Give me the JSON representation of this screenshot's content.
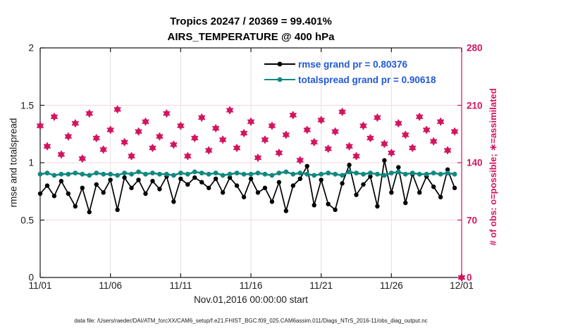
{
  "title": {
    "line1": "Tropics 20247 / 20369 = 99.401%",
    "line2": "AIRS_TEMPERATURE @ 400 hPa"
  },
  "axes": {
    "left_label": "rmse and totalspread",
    "right_label": "# of obs: o=possible; ∗=assimilated",
    "x_label": "Nov.01,2016 00:00:00 start",
    "x_tick_labels": [
      "11/01",
      "11/06",
      "11/11",
      "11/16",
      "11/21",
      "11/26",
      "12/01"
    ],
    "x_tick_days": [
      0,
      5,
      10,
      15,
      20,
      25,
      30
    ],
    "left_tick_labels": [
      "0",
      "0.5",
      "1",
      "1.5",
      "2"
    ],
    "left_tick_values": [
      0,
      0.5,
      1,
      1.5,
      2
    ],
    "right_tick_labels": [
      "0",
      "70",
      "140",
      "210",
      "280"
    ],
    "right_tick_values": [
      0,
      70,
      140,
      210,
      280
    ]
  },
  "legend": [
    {
      "label": "rmse grand pr = 0.80376",
      "color": "#000000"
    },
    {
      "label": "totalspread grand pr = 0.90618",
      "color": "#108980"
    }
  ],
  "caption": "data file: /Users/raeder/DAI/ATM_forcXX/CAM6_setup/f.e21.FHIST_BGC.f09_025.CAM6assim.011/Diags_NTrS_2016-11/obs_diag_output.nc",
  "colors": {
    "rmse": "#000000",
    "totalspread": "#108980",
    "obs": "#d4145f",
    "legend_text": "#2158d6",
    "axis": "#1a1a1a",
    "grid_vertical": "#e7dee2",
    "grid_horizontal": "#f6d7e2"
  },
  "chart_data": {
    "type": "line",
    "title": "Tropics 20247 / 20369 = 99.401% | AIRS_TEMPERATURE @ 400 hPa",
    "xlabel": "Nov.01,2016 00:00:00 start",
    "ylabel_left": "rmse and totalspread",
    "ylabel_right": "# of obs: o=possible; ∗=assimilated",
    "x_range_days": [
      0,
      30
    ],
    "left_ylim": [
      0,
      2
    ],
    "right_ylim": [
      0,
      280
    ],
    "grid": true,
    "legend_position": "top-right-inside",
    "bin_step_days": 0.5,
    "x_start_day": 0,
    "series": [
      {
        "name": "rmse",
        "axis": "left",
        "grand_pr": 0.80376,
        "values": [
          0.73,
          0.8,
          0.71,
          0.84,
          0.73,
          0.62,
          0.78,
          0.57,
          0.81,
          0.74,
          0.85,
          0.59,
          0.87,
          0.78,
          0.85,
          0.73,
          0.84,
          0.77,
          0.88,
          0.66,
          0.86,
          0.81,
          0.87,
          0.83,
          0.78,
          0.86,
          0.74,
          0.87,
          0.8,
          0.7,
          0.86,
          0.74,
          0.78,
          0.66,
          0.83,
          0.58,
          0.8,
          0.86,
          0.97,
          0.63,
          0.85,
          0.64,
          0.59,
          0.82,
          0.98,
          0.72,
          0.81,
          0.88,
          0.62,
          1.02,
          0.74,
          0.96,
          0.65,
          0.9,
          0.74,
          0.88,
          0.79,
          0.7,
          0.94,
          0.78
        ]
      },
      {
        "name": "totalspread",
        "axis": "left",
        "grand_pr": 0.90618,
        "values": [
          0.9,
          0.91,
          0.89,
          0.9,
          0.9,
          0.91,
          0.9,
          0.89,
          0.91,
          0.9,
          0.9,
          0.89,
          0.91,
          0.9,
          0.92,
          0.9,
          0.91,
          0.9,
          0.9,
          0.89,
          0.91,
          0.9,
          0.92,
          0.91,
          0.9,
          0.91,
          0.89,
          0.9,
          0.91,
          0.9,
          0.9,
          0.91,
          0.9,
          0.89,
          0.91,
          0.92,
          0.9,
          0.91,
          0.9,
          0.89,
          0.9,
          0.91,
          0.9,
          0.89,
          0.92,
          0.91,
          0.9,
          0.91,
          0.9,
          0.89,
          0.91,
          0.92,
          0.9,
          0.91,
          0.9,
          0.9,
          0.91,
          0.9,
          0.91,
          0.9
        ]
      },
      {
        "name": "n_obs_possible_and_assimilated",
        "axis": "right",
        "total_possible": 20369,
        "total_assimilated": 20247,
        "assimilated_overlaps_possible": true,
        "values": [
          185,
          160,
          196,
          150,
          172,
          188,
          145,
          200,
          170,
          156,
          180,
          205,
          165,
          148,
          178,
          190,
          158,
          172,
          200,
          162,
          185,
          148,
          170,
          195,
          155,
          182,
          168,
          204,
          158,
          176,
          190,
          146,
          168,
          185,
          152,
          174,
          198,
          143,
          180,
          165,
          192,
          157,
          178,
          202,
          160,
          148,
          185,
          170,
          195,
          163,
          152,
          188,
          174,
          158,
          196,
          180,
          166,
          190,
          155,
          178,
          0
        ]
      }
    ]
  }
}
